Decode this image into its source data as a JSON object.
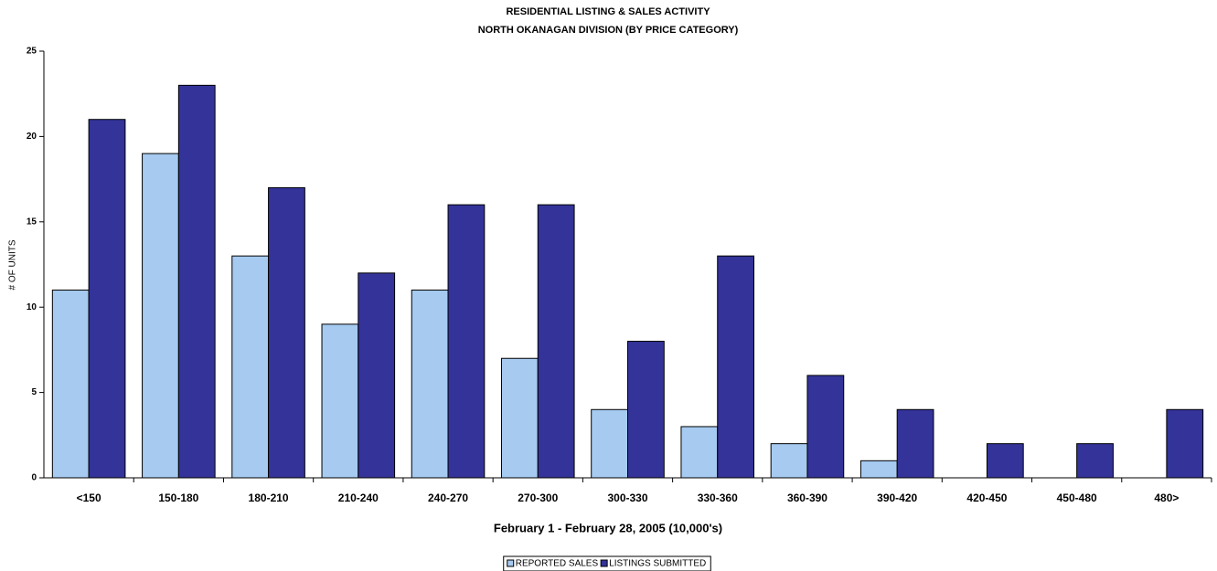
{
  "chart_data": {
    "type": "bar",
    "title": "RESIDENTIAL LISTING & SALES ACTIVITY",
    "subtitle": "NORTH OKANAGAN DIVISION (BY PRICE CATEGORY)",
    "x_label": "February 1 - February 28, 2005 (10,000's)",
    "y_label": "# OF UNITS",
    "categories": [
      "<150",
      "150-180",
      "180-210",
      "210-240",
      "240-270",
      "270-300",
      "300-330",
      "330-360",
      "360-390",
      "390-420",
      "420-450",
      "450-480",
      "480>"
    ],
    "series": [
      {
        "name": "REPORTED SALES",
        "color": "#a6caf0",
        "values": [
          11,
          19,
          13,
          9,
          11,
          7,
          4,
          3,
          2,
          1,
          0,
          0,
          0
        ]
      },
      {
        "name": "LISTINGS SUBMITTED",
        "color": "#333399",
        "values": [
          21,
          23,
          17,
          12,
          16,
          16,
          8,
          13,
          6,
          4,
          2,
          2,
          4
        ]
      }
    ],
    "ylim": [
      0,
      25
    ],
    "yticks": [
      0,
      5,
      10,
      15,
      20,
      25
    ],
    "grid": false,
    "legend": "bottom"
  }
}
